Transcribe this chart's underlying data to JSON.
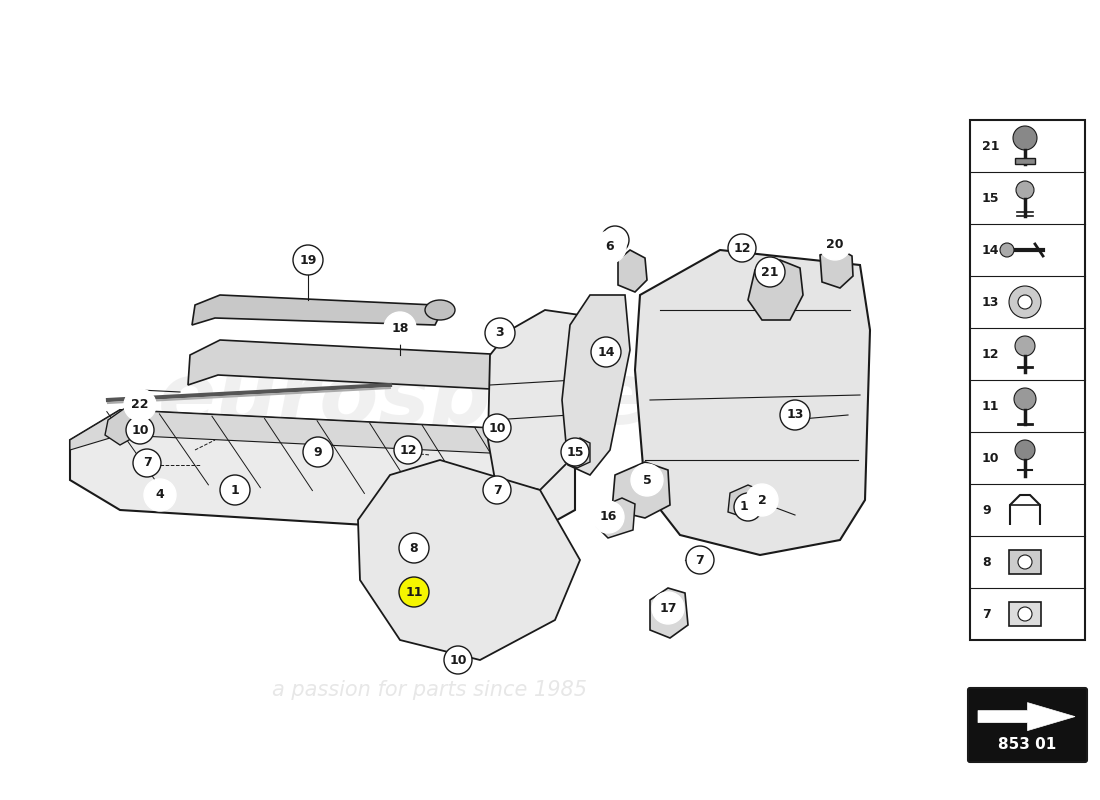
{
  "bg_color": "#ffffff",
  "fig_width": 11.0,
  "fig_height": 8.0,
  "dpi": 100,
  "lc": "#1a1a1a",
  "part_code": "853 01",
  "sidebar_items": [
    {
      "num": "21"
    },
    {
      "num": "15"
    },
    {
      "num": "14"
    },
    {
      "num": "13"
    },
    {
      "num": "12"
    },
    {
      "num": "11"
    },
    {
      "num": "10"
    },
    {
      "num": "9"
    },
    {
      "num": "8"
    },
    {
      "num": "7"
    }
  ]
}
